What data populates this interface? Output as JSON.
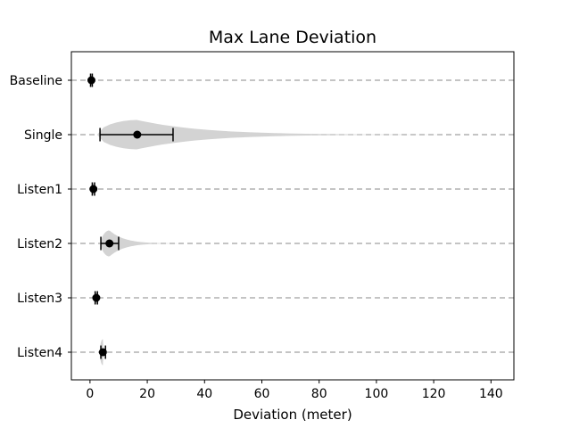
{
  "chart_data": {
    "type": "violin",
    "title": "Max Lane Deviation",
    "xlabel": "Deviation (meter)",
    "ylabel": "",
    "xlim": [
      -6.5,
      148
    ],
    "xticks": [
      0,
      20,
      40,
      60,
      80,
      100,
      120,
      140
    ],
    "categories": [
      "Baseline",
      "Single",
      "Listen1",
      "Listen2",
      "Listen3",
      "Listen4"
    ],
    "grid": "horizontal-dashed",
    "violin_color": "#d3d3d3",
    "marker_color": "#000000",
    "gridline_color": "#b0b0b0",
    "series": [
      {
        "category": "Baseline",
        "mean": 0.5,
        "ci": [
          0.2,
          0.8
        ],
        "spread": [
          -0.5,
          1.5
        ],
        "max_halfwidth": 0.07
      },
      {
        "category": "Single",
        "mean": 16.5,
        "ci": [
          3.5,
          29
        ],
        "spread": [
          2.5,
          140
        ],
        "max_halfwidth": 0.27
      },
      {
        "category": "Listen1",
        "mean": 1.2,
        "ci": [
          0.8,
          1.6
        ],
        "spread": [
          0.2,
          2.5
        ],
        "max_halfwidth": 0.1
      },
      {
        "category": "Listen2",
        "mean": 6.8,
        "ci": [
          3.8,
          10
        ],
        "spread": [
          3.8,
          35
        ],
        "max_halfwidth": 0.24
      },
      {
        "category": "Listen3",
        "mean": 2.2,
        "ci": [
          1.8,
          2.6
        ],
        "spread": [
          1.6,
          3.0
        ],
        "max_halfwidth": 0.12
      },
      {
        "category": "Listen4",
        "mean": 4.5,
        "ci": [
          3.8,
          5.4
        ],
        "spread": [
          3.4,
          5.6
        ],
        "max_halfwidth": 0.24
      }
    ]
  }
}
